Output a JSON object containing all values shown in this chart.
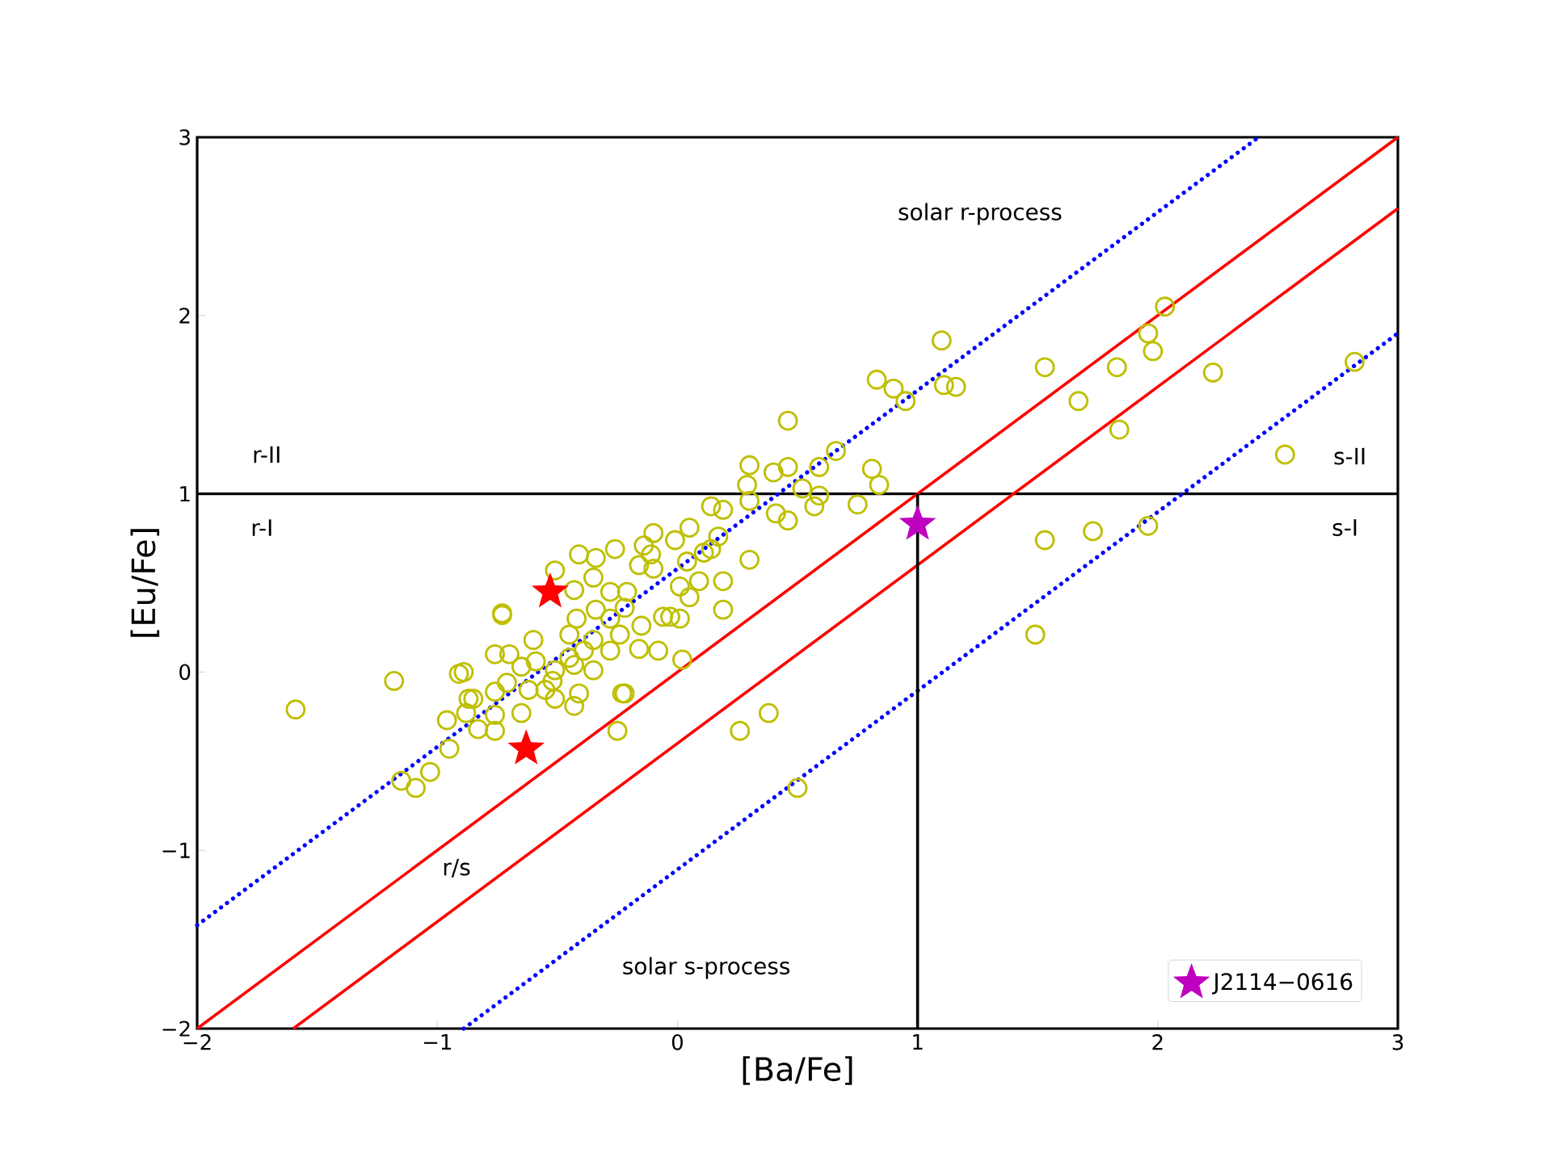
{
  "chart_data": {
    "type": "scatter",
    "xlabel": "[Ba/Fe]",
    "ylabel": "[Eu/Fe]",
    "xlim": [
      -2,
      3
    ],
    "ylim": [
      -2,
      3
    ],
    "xticks": [
      {
        "value": -2,
        "label": "−2"
      },
      {
        "value": -1,
        "label": "−1"
      },
      0,
      1,
      2,
      3
    ],
    "yticks": [
      {
        "value": -2,
        "label": "−2"
      },
      {
        "value": -1,
        "label": "−1"
      },
      0,
      1,
      2,
      3
    ],
    "grid": false,
    "legend": "bottom right",
    "ref_lines": [
      {
        "axis": "y",
        "value": 1,
        "color": "#000000"
      }
    ],
    "annotations": [
      "solar r-process",
      "solar s-process",
      "r-II",
      "r-I",
      "s-II",
      "s-I",
      "r/s"
    ],
    "series": [
      {
        "type": "line",
        "color": "#0000ff",
        "line_style": "dotted",
        "marker": "none",
        "x": [
          -2,
          2.42
        ],
        "values": [
          -1.42,
          3
        ]
      },
      {
        "type": "line",
        "color": "#ff0000",
        "line_style": "solid",
        "marker": "none",
        "x": [
          -2,
          3
        ],
        "values": [
          -2,
          3
        ]
      },
      {
        "type": "line",
        "color": "#ff0000",
        "line_style": "solid",
        "marker": "none",
        "x": [
          -1.6,
          3
        ],
        "values": [
          -2,
          2.6
        ]
      },
      {
        "type": "line",
        "color": "#0000ff",
        "line_style": "dotted",
        "marker": "none",
        "x": [
          -0.89,
          3
        ],
        "values": [
          -2,
          1.9
        ]
      },
      {
        "type": "line",
        "color": "#000000",
        "line_style": "solid",
        "marker": "none",
        "x": [
          1,
          1
        ],
        "values": [
          -2,
          1
        ]
      },
      {
        "color": "#bfbf00",
        "marker": "circle",
        "x": [
          -1.59,
          -1.18,
          -1.15,
          -1.09,
          -1.03,
          -0.95,
          -0.96,
          -0.91,
          -0.89,
          -0.88,
          -0.85,
          -0.83,
          -0.76,
          -0.25,
          -0.22,
          0.26,
          0.38,
          0.5,
          0.02,
          1.1,
          0.83,
          0.9,
          0.95,
          1.11,
          1.16,
          0.46,
          1.53,
          1.67,
          1.83,
          1.96,
          2.03,
          1.98,
          1.84,
          2.23,
          2.82,
          2.53,
          1.53,
          1.73,
          1.96,
          1.49,
          0.66,
          0.81,
          0.84,
          0.59,
          0.46,
          0.4,
          0.3,
          0.29,
          0.52,
          0.59,
          0.57,
          0.75,
          0.41,
          0.46,
          0.3,
          0.19,
          0.14,
          0.17,
          0.3,
          0.19,
          0.19,
          0.14,
          0.05,
          -0.01,
          -0.11,
          -0.14,
          -0.1,
          -0.16,
          -0.26,
          -0.34,
          -0.41,
          -0.21,
          0.01,
          0.05,
          0.09,
          -0.03,
          0.01,
          -0.15,
          -0.35,
          -0.28,
          -0.22,
          -0.42,
          -0.34,
          -0.28,
          -0.24,
          -0.16,
          -0.08,
          -0.28,
          -0.35,
          -0.43,
          -0.45,
          -0.39,
          -0.45,
          -0.43,
          -0.35,
          -0.51,
          -0.59,
          -0.6,
          -0.65,
          -0.7,
          -0.76,
          -0.73,
          -0.52,
          -0.51,
          -0.43,
          -0.41,
          -0.55,
          -0.62,
          -0.65,
          -0.71,
          -0.76,
          -0.87,
          -0.23,
          -0.76,
          -0.51,
          -0.73,
          -0.06,
          0.04,
          0.11,
          -0.1
        ],
        "values": [
          -0.21,
          -0.05,
          -0.61,
          -0.65,
          -0.56,
          -0.43,
          -0.27,
          -0.01,
          0.0,
          -0.23,
          -0.15,
          -0.32,
          -0.33,
          -0.33,
          -0.12,
          -0.33,
          -0.23,
          -0.65,
          0.07,
          1.86,
          1.64,
          1.59,
          1.52,
          1.61,
          1.6,
          1.41,
          1.71,
          1.52,
          1.71,
          1.9,
          2.05,
          1.8,
          1.36,
          1.68,
          1.74,
          1.22,
          0.74,
          0.79,
          0.82,
          0.21,
          1.24,
          1.14,
          1.05,
          1.15,
          1.15,
          1.12,
          1.16,
          1.05,
          1.03,
          0.99,
          0.93,
          0.94,
          0.89,
          0.85,
          0.96,
          0.91,
          0.93,
          0.76,
          0.63,
          0.51,
          0.35,
          0.69,
          0.81,
          0.74,
          0.66,
          0.71,
          0.58,
          0.6,
          0.69,
          0.64,
          0.66,
          0.45,
          0.48,
          0.42,
          0.51,
          0.31,
          0.3,
          0.26,
          0.53,
          0.45,
          0.36,
          0.3,
          0.35,
          0.3,
          0.21,
          0.13,
          0.12,
          0.12,
          0.18,
          0.46,
          0.21,
          0.12,
          0.08,
          0.04,
          0.01,
          0.01,
          0.06,
          0.18,
          0.03,
          0.1,
          0.1,
          0.33,
          -0.05,
          -0.15,
          -0.19,
          -0.12,
          -0.1,
          -0.1,
          -0.23,
          -0.06,
          -0.11,
          -0.15,
          -0.12,
          -0.24,
          0.57,
          0.32,
          0.31,
          0.62,
          0.67,
          0.78
        ]
      },
      {
        "color": "#ff0000",
        "marker": "star",
        "x": [
          -0.53,
          -0.63
        ],
        "values": [
          0.45,
          -0.43
        ]
      },
      {
        "name": "J2114−0616",
        "color": "#bf00bf",
        "marker": "star",
        "x": [
          1.0
        ],
        "values": [
          0.83
        ]
      }
    ]
  }
}
